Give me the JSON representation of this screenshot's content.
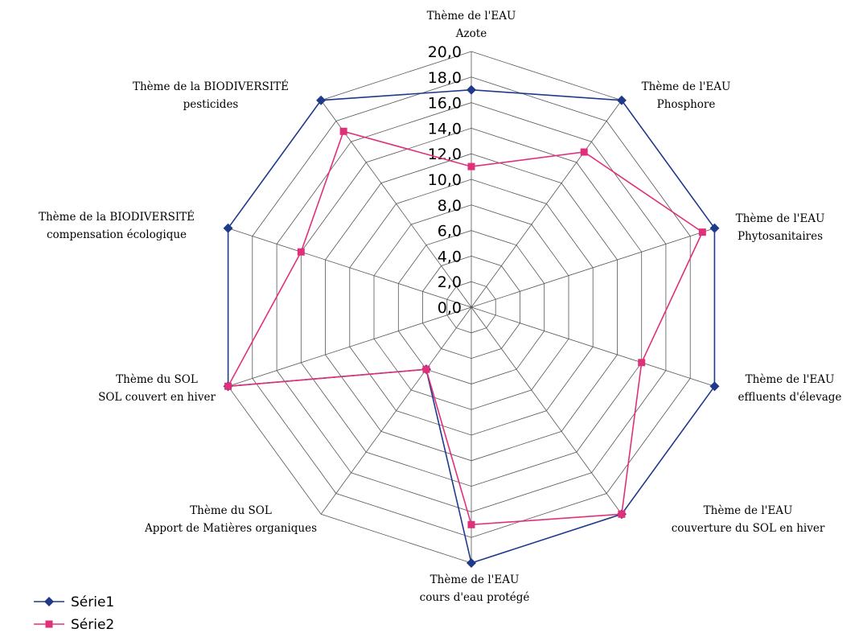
{
  "chart_data": {
    "type": "radar",
    "categories": [
      [
        "Thème de l'EAU",
        "Azote"
      ],
      [
        "Thème de l'EAU",
        "Phosphore"
      ],
      [
        "Thème de l'EAU",
        "Phytosanitaires"
      ],
      [
        "Thème de l'EAU",
        "effluents d'élevage"
      ],
      [
        "Thème de l'EAU",
        "couverture du SOL en hiver"
      ],
      [
        "Thème de l'EAU",
        "cours d'eau protégé"
      ],
      [
        "Thème du SOL",
        "Apport de Matières organiques"
      ],
      [
        "Thème du SOL",
        "SOL couvert en hiver"
      ],
      [
        "Thème de la BIODIVERSITÉ",
        "compensation écologique"
      ],
      [
        "Thème de la BIODIVERSITÉ",
        "pesticides"
      ]
    ],
    "rlim": [
      0,
      20
    ],
    "ticks": [
      "0,0",
      "2,0",
      "4,0",
      "6,0",
      "8,0",
      "10,0",
      "12,0",
      "14,0",
      "16,0",
      "18,0",
      "20,0"
    ],
    "tick_values": [
      0,
      2,
      4,
      6,
      8,
      10,
      12,
      14,
      16,
      18,
      20
    ],
    "series": [
      {
        "name": "Série1",
        "color": "#1f3a8a",
        "marker": "diamond",
        "values": [
          17,
          20,
          20,
          20,
          20,
          20,
          6,
          20,
          20,
          20
        ]
      },
      {
        "name": "Série2",
        "color": "#e0307a",
        "marker": "square",
        "values": [
          11,
          15,
          19,
          14,
          20,
          17,
          6,
          20,
          14,
          17
        ]
      }
    ],
    "grid": true,
    "legend": "bottom-left"
  }
}
